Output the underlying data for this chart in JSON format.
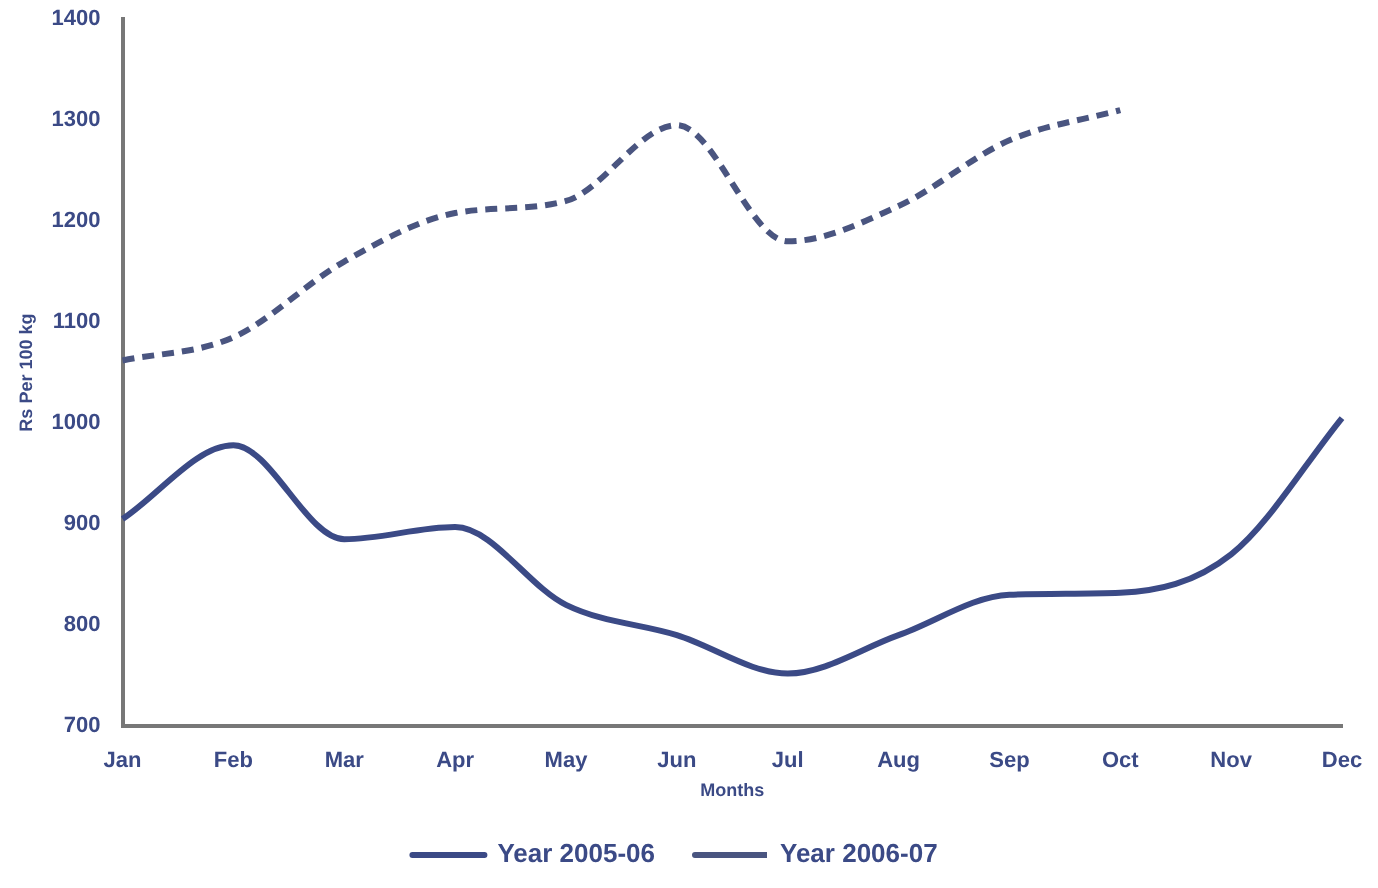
{
  "chart_data": {
    "type": "line",
    "xlabel": "Months",
    "ylabel": "Rs Per 100 kg",
    "categories": [
      "Jan",
      "Feb",
      "Mar",
      "Apr",
      "May",
      "Jun",
      "Jul",
      "Aug",
      "Sep",
      "Oct",
      "Nov",
      "Dec"
    ],
    "series": [
      {
        "name": "Year 2005-06",
        "color": "#3b4a86",
        "line_style": "solid",
        "values": [
          905,
          978,
          885,
          897,
          820,
          790,
          752,
          790,
          830,
          832,
          870,
          1005
        ]
      },
      {
        "name": "Year 2006-07",
        "color": "#4a5580",
        "line_style": "dashed",
        "values": [
          1062,
          1085,
          1160,
          1208,
          1220,
          1295,
          1180,
          1215,
          1280,
          1310,
          null,
          null
        ]
      }
    ],
    "ylim": [
      700,
      1400
    ],
    "yticks": [
      700,
      800,
      900,
      1000,
      1100,
      1200,
      1300,
      1400
    ],
    "grid": false,
    "legend": "bottom",
    "marker": "none"
  }
}
